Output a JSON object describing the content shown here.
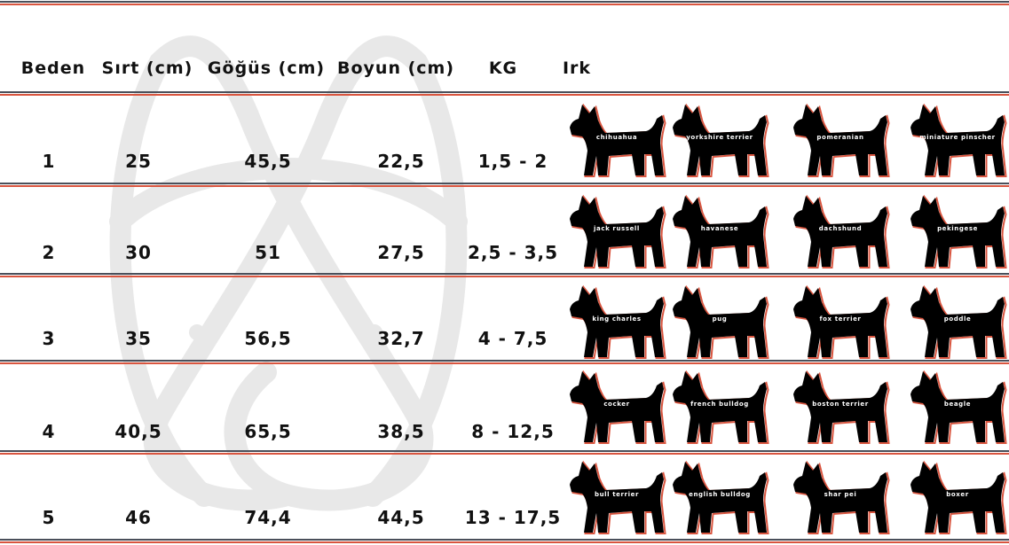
{
  "header": {
    "beden": "Beden",
    "sirt": "Sırt (cm)",
    "gogus": "Göğüs (cm)",
    "boyun": "Boyun (cm)",
    "kg": "KG",
    "irk": "Irk"
  },
  "rows": [
    {
      "beden": "1",
      "sirt": "25",
      "gogus": "45,5",
      "boyun": "22,5",
      "kg": "1,5 - 2",
      "breeds": [
        "chihuahua",
        "yorkshire terrier",
        "pomeranian",
        "miniature pinscher"
      ]
    },
    {
      "beden": "2",
      "sirt": "30",
      "gogus": "51",
      "boyun": "27,5",
      "kg": "2,5 - 3,5",
      "breeds": [
        "jack russell",
        "havanese",
        "dachshund",
        "pekingese"
      ]
    },
    {
      "beden": "3",
      "sirt": "35",
      "gogus": "56,5",
      "boyun": "32,7",
      "kg": "4 - 7,5",
      "breeds": [
        "king charles",
        "pug",
        "fox terrier",
        "poddle"
      ]
    },
    {
      "beden": "4",
      "sirt": "40,5",
      "gogus": "65,5",
      "boyun": "38,5",
      "kg": "8 - 12,5",
      "breeds": [
        "cocker",
        "french bulldog",
        "boston terrier",
        "beagle"
      ]
    },
    {
      "beden": "5",
      "sirt": "46",
      "gogus": "74,4",
      "boyun": "44,5",
      "kg": "13 - 17,5",
      "breeds": [
        "bull terrier",
        "english bulldog",
        "shar pei",
        "boxer"
      ]
    }
  ],
  "colors": {
    "line_dark": "#4a4f5a",
    "line_red": "#d9553f",
    "silhouette": "#000000",
    "watermark": "#e6e6e6"
  },
  "icons": {
    "breed_image": "dog-silhouette-icon",
    "watermark": "logo-watermark"
  }
}
